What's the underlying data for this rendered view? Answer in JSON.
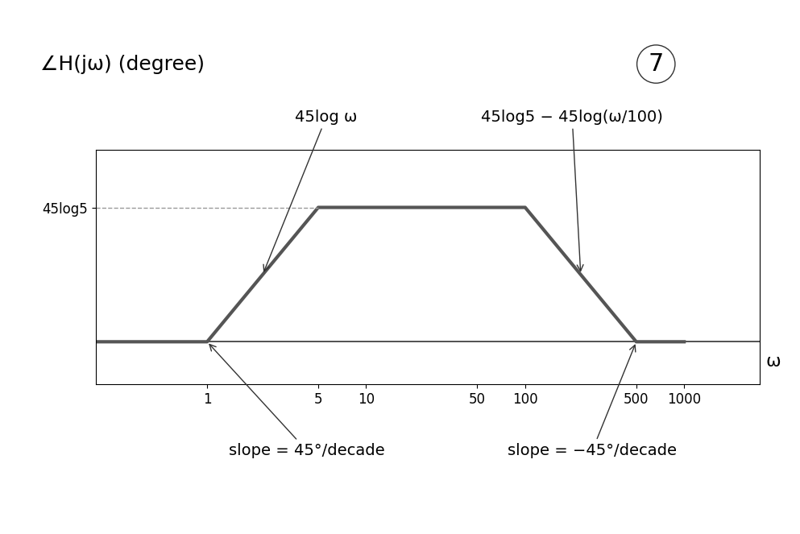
{
  "chart_data": {
    "type": "line",
    "title": "7",
    "y_label": "∠H(jω) (degree)",
    "x_label": "ω",
    "x": [
      0.2,
      1,
      5,
      100,
      500,
      1000
    ],
    "values": [
      0,
      0,
      31.45,
      31.45,
      0,
      0
    ],
    "color": "#555555",
    "log": "x",
    "xlim": [
      0.2,
      3000
    ],
    "xticks": [
      1,
      5,
      10,
      50,
      100,
      500,
      1000
    ],
    "ylim": [
      -10,
      45
    ],
    "yticks": [
      {
        "value": 31.45,
        "label": "45log5"
      }
    ],
    "annotations": [
      "45log ω",
      "45log5 − 45log(ω/100)",
      "slope = 45°/decade",
      "slope = −45°/decade"
    ],
    "grid": false
  }
}
